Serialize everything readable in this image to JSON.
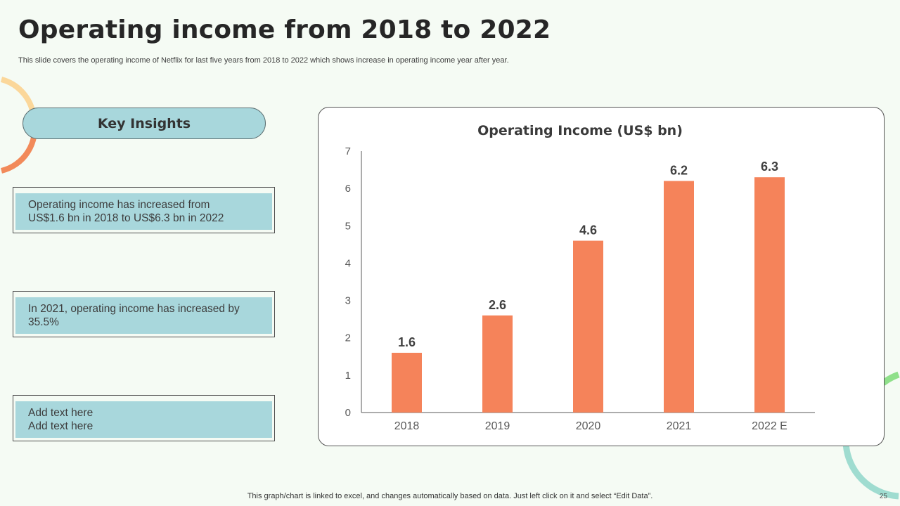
{
  "slide": {
    "title": "Operating income from 2018 to 2022",
    "subtitle": "This slide covers the operating income of Netflix for last five  years from 2018 to  2022 which shows increase in operating income year after year.",
    "footnote": "This graph/chart is linked to excel,  and changes automatically based on data. Just left click on it and select “Edit Data”.",
    "page_number": "25"
  },
  "insights": {
    "heading": "Key Insights",
    "cards": [
      {
        "lines": [
          "Operating income has increased from",
          "US$1.6 bn in 2018 to US$6.3 bn in 2022"
        ]
      },
      {
        "lines": [
          "In 2021, operating income has increased by",
          "35.5%"
        ]
      },
      {
        "lines": [
          "Add text here",
          "Add text here"
        ]
      }
    ]
  },
  "colors": {
    "bar": "#f5835a",
    "card_fill": "#a8d7dc",
    "accent_orange": "#f28a5a",
    "accent_yellow": "#fbd79a",
    "accent_green": "#8fe08a",
    "accent_teal": "#9fdcd0"
  },
  "chart_data": {
    "type": "bar",
    "title": "Operating Income (US$ bn)",
    "categories": [
      "2018",
      "2019",
      "2020",
      "2021",
      "2022 E"
    ],
    "values": [
      1.6,
      2.6,
      4.6,
      6.2,
      6.3
    ],
    "data_labels": [
      "1.6",
      "2.6",
      "4.6",
      "6.2",
      "6.3"
    ],
    "ylim": [
      0,
      7
    ],
    "yticks": [
      0,
      1,
      2,
      3,
      4,
      5,
      6,
      7
    ],
    "xlabel": "",
    "ylabel": "",
    "grid": false,
    "legend": "none"
  }
}
